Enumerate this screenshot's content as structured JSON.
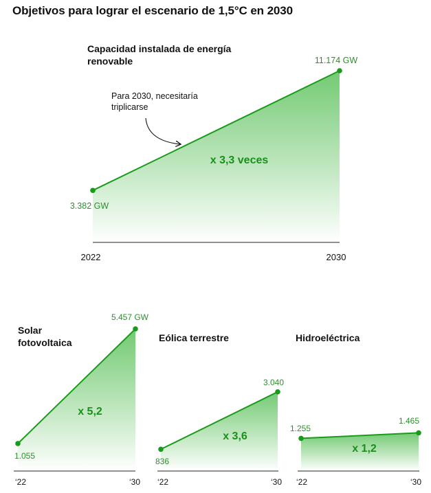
{
  "page": {
    "title": "Objetivos para lograr el escenario de 1,5°C en 2030"
  },
  "colors": {
    "line": "#1a9a1a",
    "fill_top": "#6cc76c",
    "fill_bottom": "#ffffff",
    "multiplier": "#179117",
    "value_label": "#2e8f2e",
    "axis": "#222222",
    "text": "#111111"
  },
  "chart_data": [
    {
      "id": "main",
      "type": "area",
      "title": "Capacidad instalada de energía renovable",
      "x": [
        "2022",
        "2030"
      ],
      "values": [
        3382,
        11174
      ],
      "unit": "GW",
      "value_labels": [
        "3.382 GW",
        "11.174 GW"
      ],
      "tick_labels": [
        "2022",
        "2030"
      ],
      "multiplier_label": "x 3,3 veces",
      "annotation": "Para 2030, necesitaría triplicarse",
      "ylim": [
        0,
        12000
      ],
      "grid": false
    },
    {
      "id": "solar",
      "type": "area",
      "title": "Solar fotovoltaica",
      "x": [
        "2022",
        "2030"
      ],
      "values": [
        1055,
        5457
      ],
      "unit": "GW",
      "value_labels": [
        "1.055",
        "5.457 GW"
      ],
      "tick_labels": [
        "‘22",
        "‘30"
      ],
      "multiplier_label": "x 5,2",
      "ylim": [
        0,
        5600
      ],
      "grid": false
    },
    {
      "id": "eolica",
      "type": "area",
      "title": "Eólica terrestre",
      "x": [
        "2022",
        "2030"
      ],
      "values": [
        836,
        3040
      ],
      "unit": "GW",
      "value_labels": [
        "836",
        "3.040"
      ],
      "tick_labels": [
        "‘22",
        "‘30"
      ],
      "multiplier_label": "x 3,6",
      "ylim": [
        0,
        5600
      ],
      "grid": false
    },
    {
      "id": "hidro",
      "type": "area",
      "title": "Hidroeléctrica",
      "x": [
        "2022",
        "2030"
      ],
      "values": [
        1255,
        1465
      ],
      "unit": "GW",
      "value_labels": [
        "1.255",
        "1.465"
      ],
      "tick_labels": [
        "‘22",
        "‘30"
      ],
      "multiplier_label": "x 1,2",
      "ylim": [
        0,
        5600
      ],
      "grid": false
    }
  ]
}
